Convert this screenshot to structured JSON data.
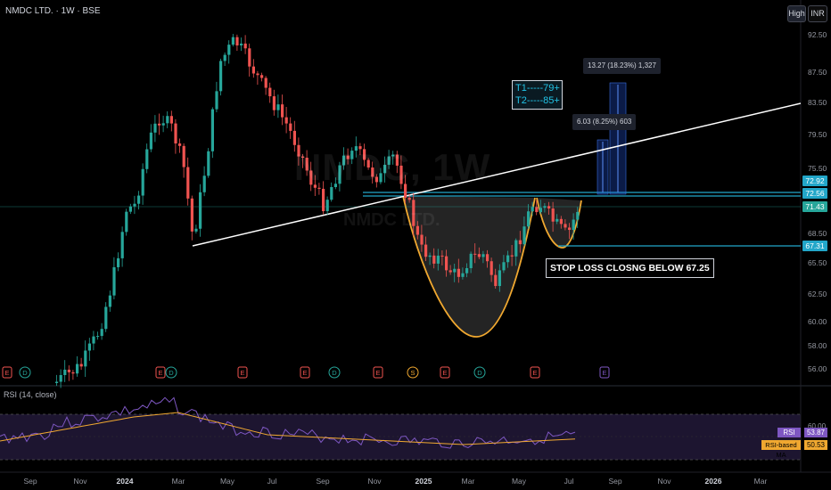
{
  "header": {
    "symbol_line": "NMDC LTD. · 1W · BSE",
    "high_button": "High",
    "currency_button": "INR"
  },
  "watermark": {
    "ticker": "NMDC, 1W",
    "name": "NMDC LTD."
  },
  "price_axis": {
    "ticks": [
      "92.50",
      "87.50",
      "83.50",
      "79.50",
      "75.50",
      "68.50",
      "65.50",
      "62.50",
      "60.00",
      "58.00",
      "56.00"
    ],
    "tags": [
      {
        "text": "72.92",
        "color": "#22a6c9"
      },
      {
        "text": "72.56",
        "color": "#22a6c9"
      },
      {
        "text": "71.43",
        "color": "#26a69a"
      },
      {
        "text": "67.31",
        "color": "#22a6c9"
      }
    ]
  },
  "time_axis": {
    "labels": [
      "Sep",
      "Nov",
      "2024",
      "Mar",
      "May",
      "Jul",
      "Sep",
      "Nov",
      "2025",
      "Mar",
      "May",
      "Jul",
      "Sep",
      "Nov",
      "2026",
      "Mar"
    ]
  },
  "annotations": {
    "targets_line1": "T1-----79+",
    "targets_line2": "T2-----85+",
    "measure_small": "6.03 (8.25%) 603",
    "measure_large": "13.27 (18.23%) 1,327",
    "stop_loss": "STOP LOSS CLOSNG BELOW 67.25"
  },
  "events": [
    {
      "letter": "E",
      "type": "earnings"
    },
    {
      "letter": "D",
      "type": "dividend"
    },
    {
      "letter": "E",
      "type": "earnings"
    },
    {
      "letter": "D",
      "type": "dividend"
    },
    {
      "letter": "E",
      "type": "earnings"
    },
    {
      "letter": "E",
      "type": "earnings"
    },
    {
      "letter": "D",
      "type": "dividend"
    },
    {
      "letter": "E",
      "type": "earnings"
    },
    {
      "letter": "S",
      "type": "split"
    },
    {
      "letter": "E",
      "type": "earnings"
    },
    {
      "letter": "D",
      "type": "dividend"
    },
    {
      "letter": "E",
      "type": "earnings"
    },
    {
      "letter": "E",
      "type": "earnings"
    }
  ],
  "rsi": {
    "title": "RSI (14, close)",
    "axis_tick": "60.00",
    "rsi_label": "RSI",
    "rsi_value": "53.87",
    "ma_label": "RSI-based MA",
    "ma_value": "50.53"
  },
  "colors": {
    "up": "#26a69a",
    "down": "#ef5350",
    "cup": "#f0a830",
    "cyan": "#22a6c9",
    "trend": "#ffffff",
    "rsi_line": "#7e57c2",
    "rsi_ma": "#f0a830"
  }
}
